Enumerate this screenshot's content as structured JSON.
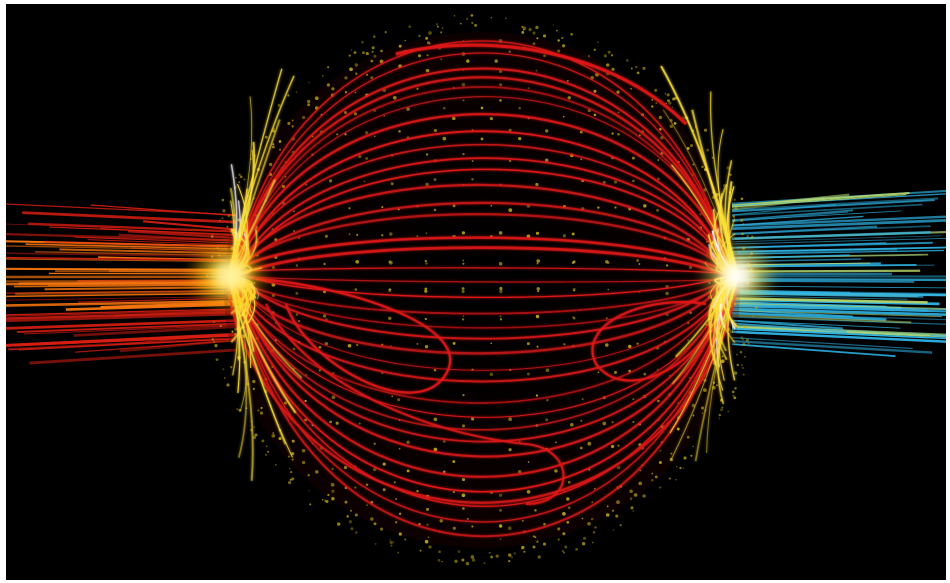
{
  "image": {
    "subject": "",
    "colors": {
      "background": "#000000",
      "frame": "#ffffff",
      "sphere_lines": "#e01818",
      "sphere_dots": "#c9b21a",
      "pole_glow": "#ffe23a",
      "left_streaks_hot": "#ff7a10",
      "left_streaks_cool": "#d81e12",
      "right_streaks": "#2fb4e6",
      "right_streaks_mix": "#b9d86a"
    },
    "elements": [
      "sphere-of-field-lines",
      "left-pole-burst",
      "right-pole-burst",
      "left-streak-bundle",
      "right-streak-bundle",
      "dotted-latitude-rings"
    ]
  }
}
